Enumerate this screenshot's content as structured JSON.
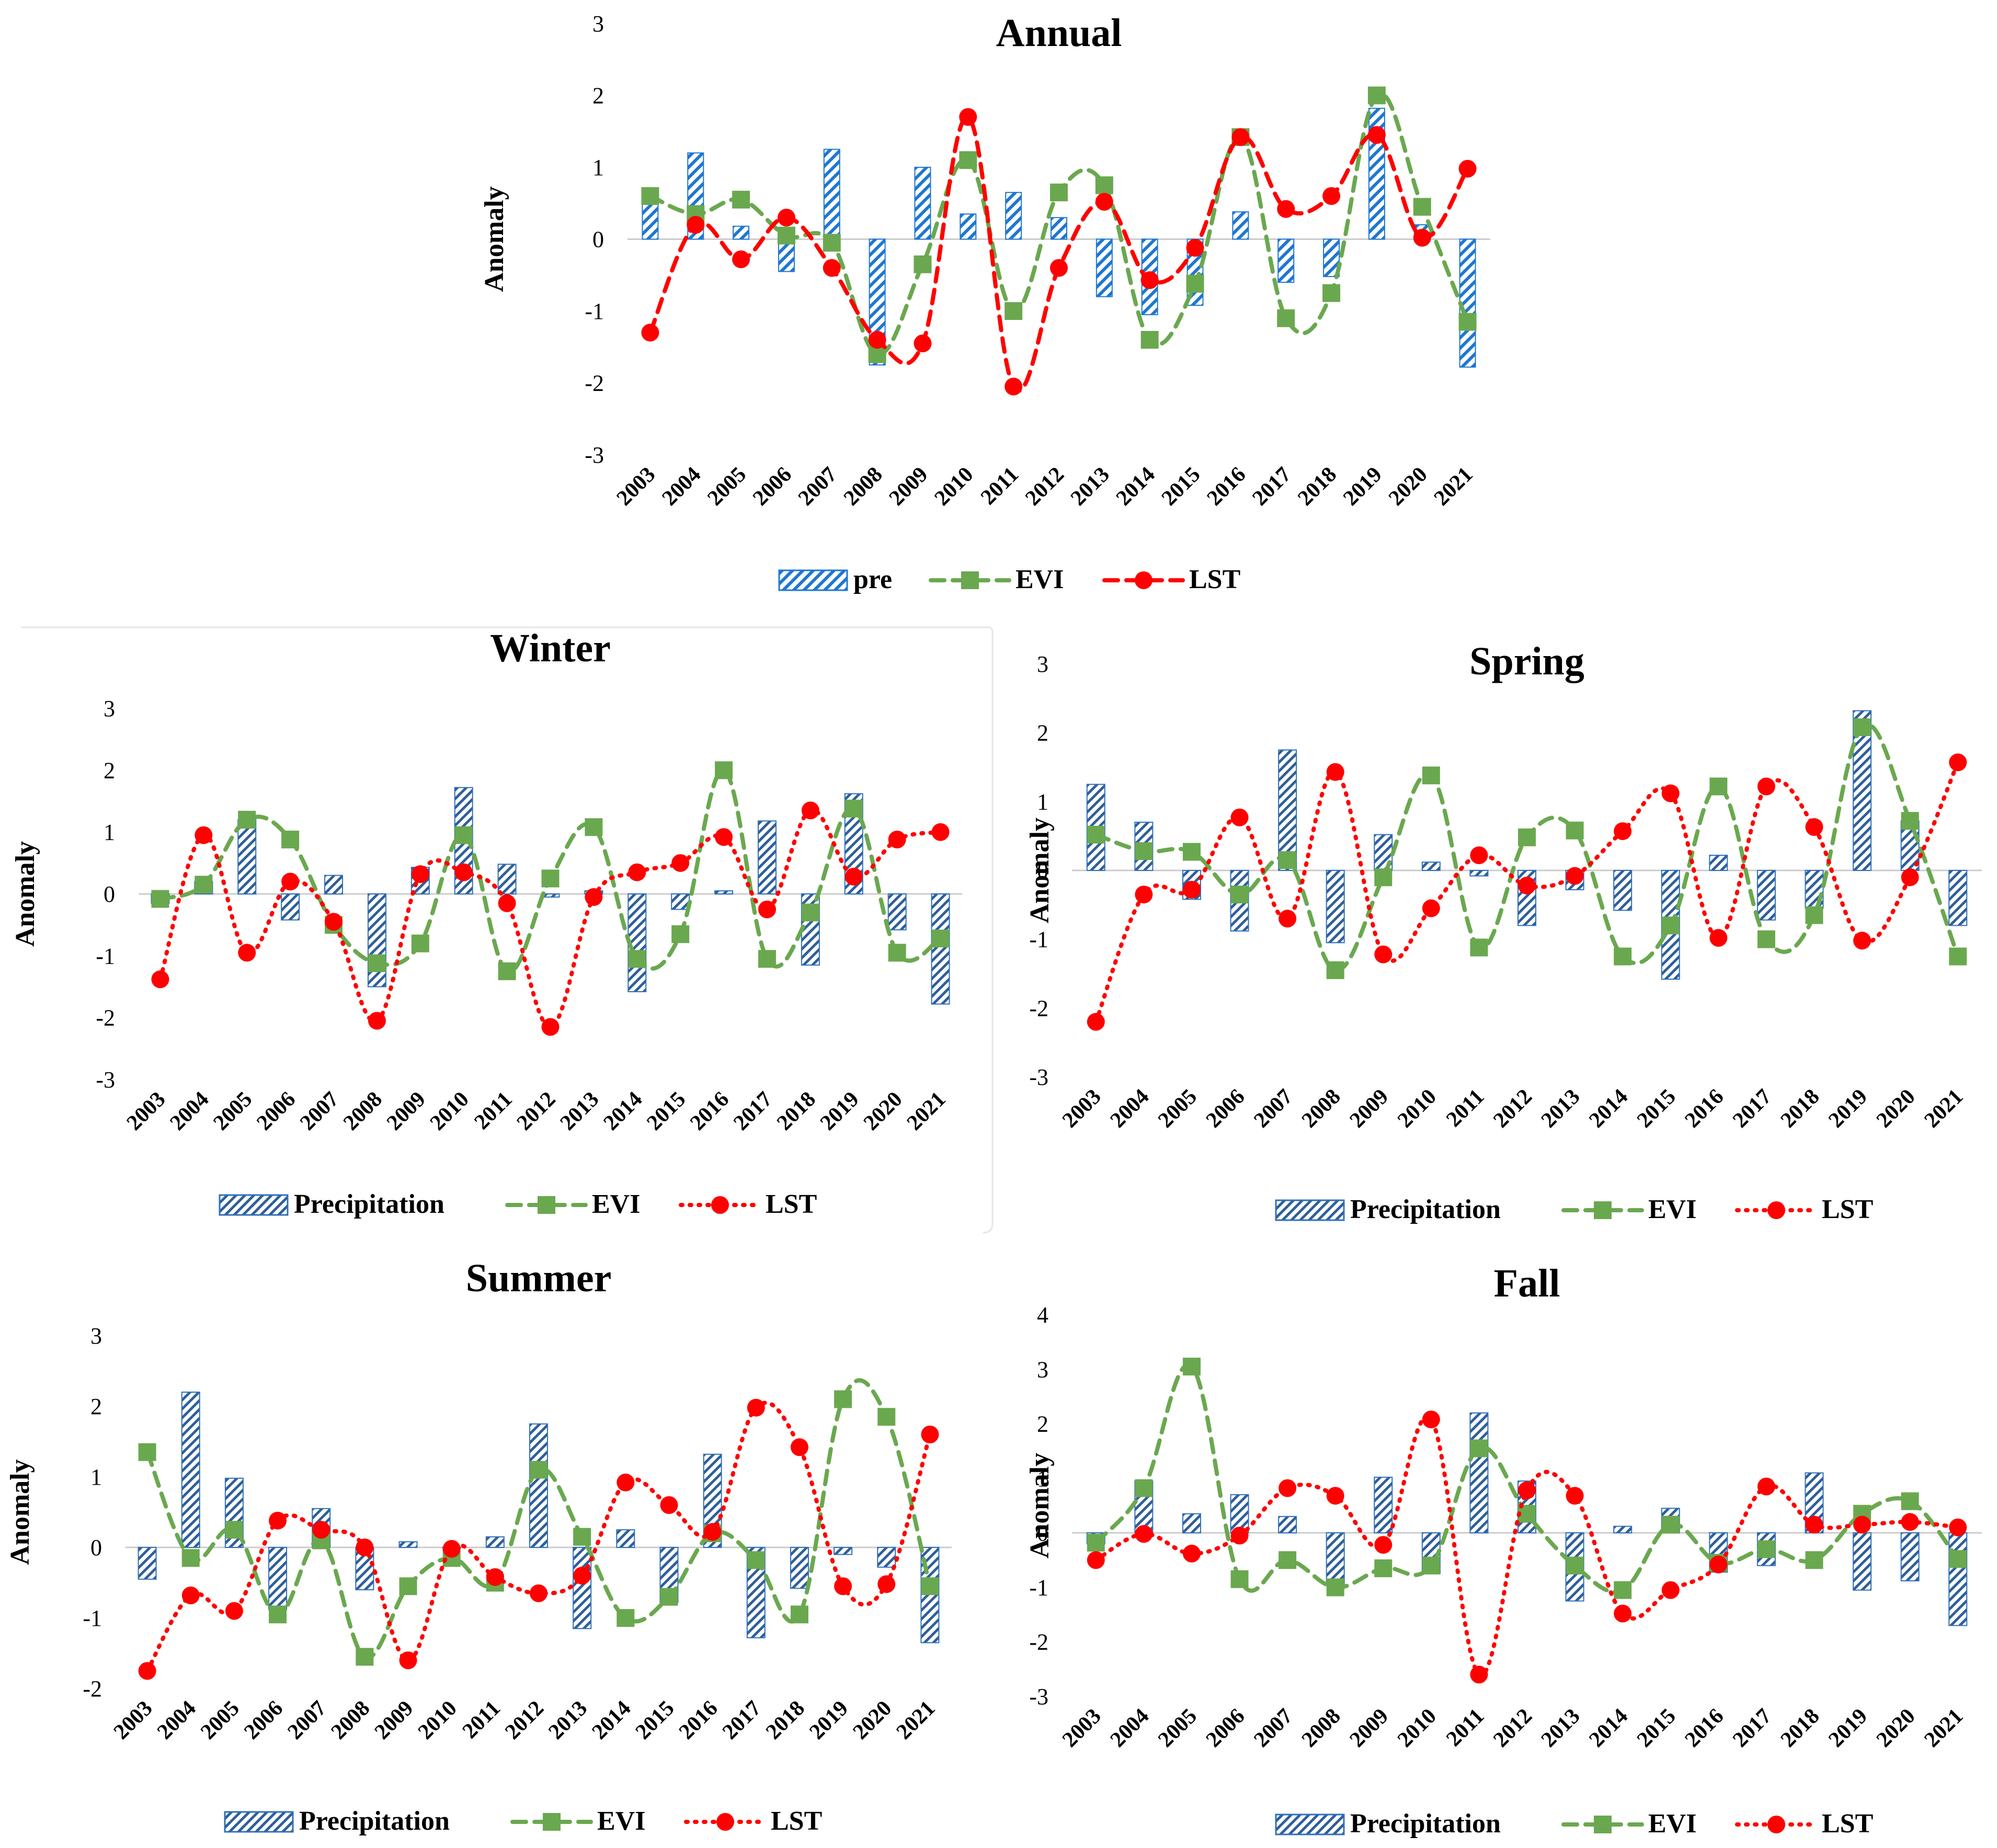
{
  "figure": {
    "colors": {
      "pre": "#1f77d0",
      "evi": "#6aa84f",
      "lst": "#ff0000"
    },
    "years": [
      "2003",
      "2004",
      "2005",
      "2006",
      "2007",
      "2008",
      "2009",
      "2010",
      "2011",
      "2012",
      "2013",
      "2014",
      "2015",
      "2016",
      "2017",
      "2018",
      "2019",
      "2020",
      "2021"
    ]
  },
  "chart_data": [
    {
      "id": "annual",
      "type": "bar+line",
      "title": "Annual",
      "ylabel": "Anomaly",
      "ylim": [
        -3,
        3
      ],
      "yticks": [
        -3,
        -2,
        -1,
        0,
        1,
        2,
        3
      ],
      "categories": [
        "2003",
        "2004",
        "2005",
        "2006",
        "2007",
        "2008",
        "2009",
        "2010",
        "2011",
        "2012",
        "2013",
        "2014",
        "2015",
        "2016",
        "2017",
        "2018",
        "2019",
        "2020",
        "2021"
      ],
      "series": [
        {
          "name": "pre",
          "kind": "bar",
          "hatch": "light",
          "values": [
            0.65,
            1.2,
            0.18,
            -0.45,
            1.25,
            -1.75,
            1.0,
            0.35,
            0.65,
            0.3,
            -0.8,
            -1.05,
            -0.92,
            0.38,
            -0.6,
            -0.52,
            1.82,
            0.2,
            -1.78
          ]
        },
        {
          "name": "EVI",
          "kind": "line",
          "dash": "dashed",
          "marker": "square",
          "values": [
            0.6,
            0.35,
            0.55,
            0.05,
            -0.05,
            -1.6,
            -0.35,
            1.1,
            -1.0,
            0.65,
            0.75,
            -1.4,
            -0.62,
            1.42,
            -1.1,
            -0.75,
            2.0,
            0.45,
            -1.15
          ]
        },
        {
          "name": "LST",
          "kind": "line",
          "dash": "dashed",
          "marker": "circle",
          "values": [
            -1.3,
            0.2,
            -0.28,
            0.3,
            -0.4,
            -1.4,
            -1.45,
            1.7,
            -2.05,
            -0.4,
            0.52,
            -0.57,
            -0.12,
            1.42,
            0.42,
            0.6,
            1.45,
            0.02,
            0.98
          ]
        }
      ]
    },
    {
      "id": "winter",
      "type": "bar+line",
      "title": "Winter",
      "ylabel": "Anomaly",
      "ylim": [
        -3,
        3
      ],
      "yticks": [
        -3,
        -2,
        -1,
        0,
        1,
        2,
        3
      ],
      "categories": [
        "2003",
        "2004",
        "2005",
        "2006",
        "2007",
        "2008",
        "2009",
        "2010",
        "2011",
        "2012",
        "2013",
        "2014",
        "2015",
        "2016",
        "2017",
        "2018",
        "2019",
        "2020",
        "2021"
      ],
      "series": [
        {
          "name": "Precipitation",
          "kind": "bar",
          "hatch": "dense",
          "values": [
            -0.15,
            0.2,
            1.2,
            -0.42,
            0.3,
            -1.5,
            0.43,
            1.72,
            0.48,
            -0.05,
            0.05,
            -1.58,
            -0.25,
            0.05,
            1.18,
            -1.15,
            1.62,
            -0.58,
            -1.78
          ]
        },
        {
          "name": "EVI",
          "kind": "line",
          "dash": "dashed",
          "marker": "square",
          "values": [
            -0.08,
            0.15,
            1.2,
            0.88,
            -0.5,
            -1.12,
            -0.8,
            0.95,
            -1.25,
            0.25,
            1.08,
            -1.05,
            -0.65,
            2.0,
            -1.05,
            -0.3,
            1.38,
            -0.95,
            -0.72
          ]
        },
        {
          "name": "LST",
          "kind": "line",
          "dash": "dotted",
          "marker": "circle",
          "values": [
            -1.38,
            0.95,
            -0.95,
            0.2,
            -0.45,
            -2.05,
            0.32,
            0.35,
            -0.15,
            -2.15,
            -0.05,
            0.35,
            0.5,
            0.92,
            -0.25,
            1.35,
            0.28,
            0.88,
            1.0
          ]
        }
      ]
    },
    {
      "id": "spring",
      "type": "bar+line",
      "title": "Spring",
      "ylabel": "Anomaly",
      "ylim": [
        -3,
        3
      ],
      "yticks": [
        -3,
        -2,
        -1,
        0,
        1,
        2,
        3
      ],
      "categories": [
        "2003",
        "2004",
        "2005",
        "2006",
        "2007",
        "2008",
        "2009",
        "2010",
        "2011",
        "2012",
        "2013",
        "2014",
        "2015",
        "2016",
        "2017",
        "2018",
        "2019",
        "2020",
        "2021"
      ],
      "series": [
        {
          "name": "Precipitation",
          "kind": "bar",
          "hatch": "dense",
          "values": [
            1.25,
            0.7,
            -0.42,
            -0.88,
            1.75,
            -1.05,
            0.52,
            0.12,
            -0.08,
            -0.8,
            -0.28,
            -0.58,
            -1.58,
            0.22,
            -0.72,
            -0.55,
            2.32,
            0.72,
            -0.8
          ]
        },
        {
          "name": "EVI",
          "kind": "line",
          "dash": "dashed",
          "marker": "square",
          "values": [
            0.52,
            0.28,
            0.27,
            -0.35,
            0.15,
            -1.45,
            -0.1,
            1.38,
            -1.12,
            0.48,
            0.58,
            -1.25,
            -0.8,
            1.22,
            -1.0,
            -0.65,
            2.08,
            0.72,
            -1.25
          ]
        },
        {
          "name": "LST",
          "kind": "line",
          "dash": "dotted",
          "marker": "circle",
          "values": [
            -2.2,
            -0.35,
            -0.28,
            0.77,
            -0.7,
            1.43,
            -1.22,
            -0.55,
            0.22,
            -0.22,
            -0.08,
            0.57,
            1.12,
            -0.98,
            1.22,
            0.63,
            -1.02,
            -0.1,
            1.57
          ]
        }
      ]
    },
    {
      "id": "summer",
      "type": "bar+line",
      "title": "Summer",
      "ylabel": "Anomaly",
      "ylim": [
        -2,
        3
      ],
      "yticks": [
        -2,
        -1,
        0,
        1,
        2,
        3
      ],
      "categories": [
        "2003",
        "2004",
        "2005",
        "2006",
        "2007",
        "2008",
        "2009",
        "2010",
        "2011",
        "2012",
        "2013",
        "2014",
        "2015",
        "2016",
        "2017",
        "2018",
        "2019",
        "2020",
        "2021"
      ],
      "series": [
        {
          "name": "Precipitation",
          "kind": "bar",
          "hatch": "dense",
          "values": [
            -0.45,
            2.2,
            0.98,
            -0.88,
            0.55,
            -0.6,
            0.08,
            0.0,
            0.15,
            1.75,
            -1.15,
            0.25,
            -0.78,
            1.32,
            -1.28,
            -0.58,
            -0.1,
            -0.28,
            -1.35
          ]
        },
        {
          "name": "EVI",
          "kind": "line",
          "dash": "dashed",
          "marker": "square",
          "values": [
            1.35,
            -0.15,
            0.25,
            -0.95,
            0.1,
            -1.55,
            -0.55,
            -0.15,
            -0.5,
            1.1,
            0.15,
            -1.0,
            -0.7,
            0.2,
            -0.18,
            -0.95,
            2.1,
            1.85,
            -0.55
          ]
        },
        {
          "name": "LST",
          "kind": "line",
          "dash": "dotted",
          "marker": "circle",
          "values": [
            -1.75,
            -0.68,
            -0.9,
            0.38,
            0.25,
            0.0,
            -1.6,
            -0.02,
            -0.42,
            -0.65,
            -0.4,
            0.92,
            0.6,
            0.22,
            1.98,
            1.42,
            -0.55,
            -0.52,
            1.6
          ]
        }
      ]
    },
    {
      "id": "fall",
      "type": "bar+line",
      "title": "Fall",
      "ylabel": "Anomaly",
      "ylim": [
        -3,
        4
      ],
      "yticks": [
        -3,
        -2,
        -1,
        0,
        1,
        2,
        3,
        4
      ],
      "categories": [
        "2003",
        "2004",
        "2005",
        "2006",
        "2007",
        "2008",
        "2009",
        "2010",
        "2011",
        "2012",
        "2013",
        "2014",
        "2015",
        "2016",
        "2017",
        "2018",
        "2019",
        "2020",
        "2021"
      ],
      "series": [
        {
          "name": "Precipitation",
          "kind": "bar",
          "hatch": "dense",
          "values": [
            -0.2,
            0.95,
            0.35,
            0.7,
            0.3,
            -0.95,
            1.02,
            -0.75,
            2.2,
            0.95,
            -1.25,
            0.12,
            0.45,
            -0.72,
            -0.6,
            1.1,
            -1.05,
            -0.88,
            -1.7
          ]
        },
        {
          "name": "EVI",
          "kind": "line",
          "dash": "dashed",
          "marker": "square",
          "values": [
            -0.18,
            0.82,
            3.05,
            -0.85,
            -0.5,
            -1.0,
            -0.65,
            -0.6,
            1.55,
            0.35,
            -0.6,
            -1.05,
            0.15,
            -0.55,
            -0.3,
            -0.5,
            0.35,
            0.58,
            -0.48
          ]
        },
        {
          "name": "LST",
          "kind": "line",
          "dash": "dotted",
          "marker": "circle",
          "values": [
            -0.5,
            -0.02,
            -0.38,
            -0.05,
            0.82,
            0.68,
            -0.22,
            2.08,
            -2.6,
            0.78,
            0.68,
            -1.48,
            -1.05,
            -0.58,
            0.85,
            0.15,
            0.15,
            0.2,
            0.1
          ]
        }
      ]
    }
  ]
}
